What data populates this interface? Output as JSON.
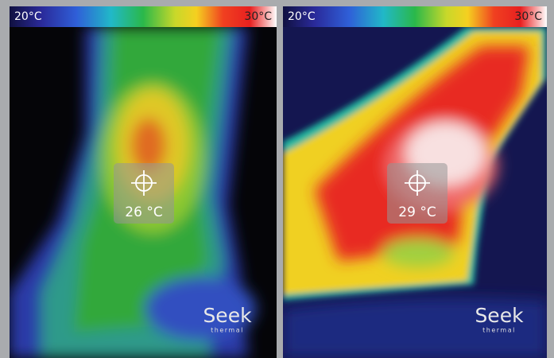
{
  "panels": [
    {
      "scale_min": "20°C",
      "scale_max": "30°C",
      "reading": "26 °C",
      "brand": "Seek",
      "brand_sub": "thermal"
    },
    {
      "scale_min": "20°C",
      "scale_max": "30°C",
      "reading": "29 °C",
      "brand": "Seek",
      "brand_sub": "thermal"
    }
  ]
}
